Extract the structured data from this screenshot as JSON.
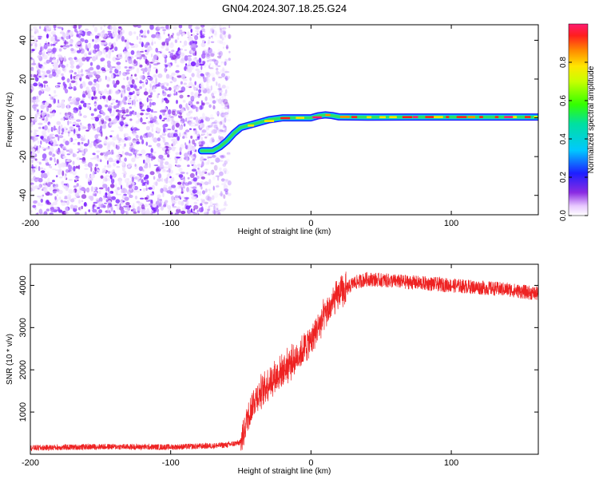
{
  "title": "GN04.2024.307.18.25.G24",
  "chart_data": [
    {
      "type": "heatmap",
      "xlabel": "Height of straight line (km)",
      "ylabel": "Frequency (Hz)",
      "xlim": [
        -200,
        162
      ],
      "ylim": [
        -50,
        48
      ],
      "xticks": [
        -200,
        -100,
        0,
        100
      ],
      "yticks": [
        -40,
        -20,
        0,
        20,
        40
      ],
      "colorbar": {
        "label": "Normalized spectral amplitude",
        "range": [
          0,
          1
        ],
        "ticks": [
          "0.0",
          "0.2",
          "0.4",
          "0.6",
          "0.8"
        ],
        "tick_values": [
          0,
          0.2,
          0.4,
          0.6,
          0.8
        ]
      },
      "noise_region": {
        "x": [
          -200,
          -58
        ],
        "y": [
          -50,
          48
        ]
      },
      "track": [
        {
          "x": -78,
          "y": -17
        },
        {
          "x": -70,
          "y": -17
        },
        {
          "x": -65,
          "y": -15
        },
        {
          "x": -60,
          "y": -12
        },
        {
          "x": -55,
          "y": -8
        },
        {
          "x": -50,
          "y": -5
        },
        {
          "x": -45,
          "y": -4
        },
        {
          "x": -40,
          "y": -3
        },
        {
          "x": -35,
          "y": -2
        },
        {
          "x": -30,
          "y": -1
        },
        {
          "x": -20,
          "y": 0
        },
        {
          "x": -10,
          "y": 0
        },
        {
          "x": 0,
          "y": 0
        },
        {
          "x": 5,
          "y": 1
        },
        {
          "x": 10,
          "y": 1.5
        },
        {
          "x": 15,
          "y": 1.2
        },
        {
          "x": 20,
          "y": 0.5
        },
        {
          "x": 40,
          "y": 0.3
        },
        {
          "x": 80,
          "y": 0.4
        },
        {
          "x": 120,
          "y": 0.4
        },
        {
          "x": 162,
          "y": 0.4
        }
      ]
    },
    {
      "type": "line",
      "xlabel": "Height of straight line (km)",
      "ylabel": "SNR (10 * v/v)",
      "xlim": [
        -200,
        162
      ],
      "ylim": [
        0,
        4500
      ],
      "xticks": [
        -200,
        -100,
        0,
        100
      ],
      "yticks": [
        1000,
        2000,
        3000,
        4000
      ],
      "series": [
        {
          "color": "#ee2222",
          "x": [
            -200,
            -150,
            -100,
            -70,
            -60,
            -50,
            -45,
            -40,
            -35,
            -30,
            -20,
            -10,
            0,
            10,
            20,
            25,
            30,
            40,
            60,
            80,
            100,
            120,
            140,
            162
          ],
          "y": [
            150,
            180,
            170,
            200,
            220,
            280,
            900,
            1300,
            1500,
            1700,
            2000,
            2300,
            2700,
            3300,
            3800,
            3900,
            4050,
            4150,
            4100,
            4050,
            4000,
            3950,
            3900,
            3800
          ]
        }
      ]
    }
  ]
}
